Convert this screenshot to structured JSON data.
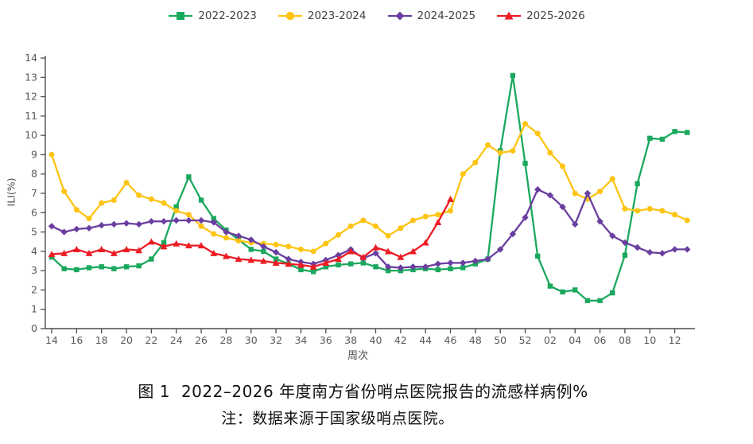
{
  "caption": {
    "figure_label": "图 1",
    "title": "2022–2026 年度南方省份哨点医院报告的流感样病例%",
    "note": "注：数据来源于国家级哨点医院。"
  },
  "chart_data": {
    "type": "line",
    "title": "图 1 2022–2026 年度南方省份哨点医院报告的流感样病例%",
    "xlabel": "周次",
    "ylabel": "ILI(%)",
    "ylim": [
      0,
      14
    ],
    "y_ticks": [
      0,
      1,
      2,
      3,
      4,
      5,
      6,
      7,
      8,
      9,
      10,
      11,
      12,
      13,
      14
    ],
    "x_tick_labels": [
      "14",
      "16",
      "18",
      "20",
      "22",
      "24",
      "26",
      "28",
      "30",
      "32",
      "34",
      "36",
      "38",
      "40",
      "42",
      "44",
      "46",
      "48",
      "50",
      "52",
      "02",
      "04",
      "06",
      "08",
      "10",
      "12"
    ],
    "grid": false,
    "legend_position": "top-center",
    "categories": [
      "14",
      "15",
      "16",
      "17",
      "18",
      "19",
      "20",
      "21",
      "22",
      "23",
      "24",
      "25",
      "26",
      "27",
      "28",
      "29",
      "30",
      "31",
      "32",
      "33",
      "34",
      "35",
      "36",
      "37",
      "38",
      "39",
      "40",
      "41",
      "42",
      "43",
      "44",
      "45",
      "46",
      "47",
      "48",
      "49",
      "50",
      "51",
      "52",
      "01",
      "02",
      "03",
      "04",
      "05",
      "06",
      "07",
      "08",
      "09",
      "10",
      "11",
      "12",
      "13"
    ],
    "series": [
      {
        "name": "2022-2023",
        "color": "#1aa85d",
        "marker": "square",
        "values": [
          3.7,
          3.1,
          3.05,
          3.15,
          3.2,
          3.1,
          3.2,
          3.25,
          3.6,
          4.45,
          6.3,
          7.85,
          6.65,
          5.7,
          5.1,
          4.6,
          4.1,
          4.0,
          3.6,
          3.35,
          3.05,
          2.95,
          3.2,
          3.3,
          3.35,
          3.4,
          3.2,
          3.0,
          3.0,
          3.05,
          3.1,
          3.05,
          3.1,
          3.15,
          3.35,
          3.6,
          9.2,
          13.1,
          8.55,
          3.75,
          2.2,
          1.9,
          2.0,
          1.45,
          1.45,
          1.85,
          3.8,
          7.5,
          9.85,
          9.8,
          10.2,
          10.15
        ]
      },
      {
        "name": "2023-2024",
        "color": "#fdc413",
        "marker": "circle",
        "values": [
          9.0,
          7.1,
          6.15,
          5.7,
          6.5,
          6.65,
          7.55,
          6.9,
          6.7,
          6.5,
          6.1,
          5.9,
          5.3,
          4.9,
          4.7,
          4.55,
          4.45,
          4.4,
          4.35,
          4.25,
          4.1,
          4.0,
          4.4,
          4.85,
          5.3,
          5.6,
          5.3,
          4.8,
          5.2,
          5.6,
          5.8,
          5.9,
          6.1,
          8.0,
          8.6,
          9.5,
          9.1,
          9.2,
          10.6,
          10.1,
          9.1,
          8.4,
          7.0,
          6.7,
          7.1,
          7.75,
          6.2,
          6.1,
          6.2,
          6.1,
          5.9,
          5.6
        ]
      },
      {
        "name": "2024-2025",
        "color": "#6a3ea0",
        "marker": "diamond",
        "values": [
          5.3,
          5.0,
          5.15,
          5.2,
          5.35,
          5.4,
          5.45,
          5.4,
          5.55,
          5.55,
          5.6,
          5.6,
          5.6,
          5.5,
          5.0,
          4.8,
          4.6,
          4.25,
          3.95,
          3.6,
          3.45,
          3.35,
          3.55,
          3.8,
          4.1,
          3.65,
          3.9,
          3.2,
          3.15,
          3.2,
          3.2,
          3.35,
          3.4,
          3.4,
          3.5,
          3.6,
          4.1,
          4.9,
          5.75,
          7.2,
          6.9,
          6.3,
          5.4,
          7.0,
          5.55,
          4.8,
          4.45,
          4.2,
          3.95,
          3.9,
          4.1,
          4.1
        ]
      },
      {
        "name": "2025-2026",
        "color": "#ec1c24",
        "marker": "triangle",
        "values": [
          3.85,
          3.9,
          4.1,
          3.9,
          4.1,
          3.9,
          4.1,
          4.05,
          4.5,
          4.25,
          4.4,
          4.3,
          4.3,
          3.9,
          3.75,
          3.6,
          3.55,
          3.5,
          3.4,
          3.35,
          3.3,
          3.2,
          3.4,
          3.6,
          4.0,
          3.7,
          4.2,
          4.0,
          3.7,
          4.0,
          4.45,
          5.5,
          6.7
        ]
      }
    ]
  }
}
